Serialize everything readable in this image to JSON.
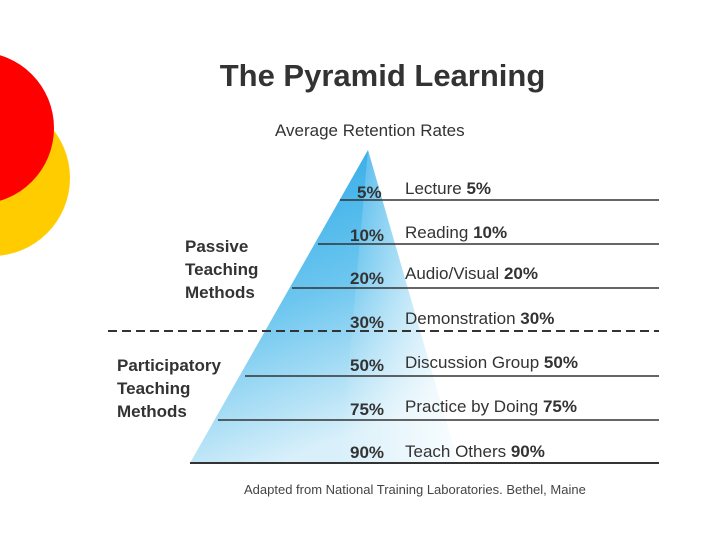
{
  "title": "The Pyramid Learning",
  "subtitle": "Average Retention Rates",
  "rows": [
    {
      "pct": "5%",
      "method": "Lecture",
      "value": "5%"
    },
    {
      "pct": "10%",
      "method": "Reading",
      "value": "10%"
    },
    {
      "pct": "20%",
      "method": "Audio/Visual",
      "value": "20%"
    },
    {
      "pct": "30%",
      "method": "Demonstration",
      "value": "30%"
    },
    {
      "pct": "50%",
      "method": "Discussion Group",
      "value": "50%"
    },
    {
      "pct": "75%",
      "method": "Practice by Doing",
      "value": "75%"
    },
    {
      "pct": "90%",
      "method": "Teach Others",
      "value": "90%"
    }
  ],
  "groups": {
    "passive": {
      "line1": "Passive",
      "line2": "Teaching",
      "line3": "Methods"
    },
    "participatory": {
      "line1": "Participatory",
      "line2": "Teaching",
      "line3": "Methods"
    }
  },
  "source": "Adapted from National Training Laboratories. Bethel, Maine",
  "colors": {
    "red": "#ff0000",
    "yellow": "#ffcc00",
    "pyramid_top": "#1ea3e6",
    "pyramid_bottom": "#d6eef9",
    "lines": "#333333"
  }
}
